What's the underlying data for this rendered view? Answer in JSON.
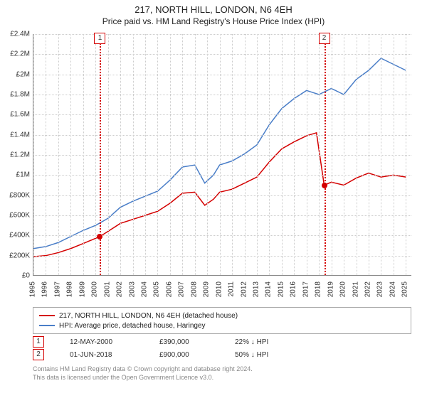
{
  "title": "217, NORTH HILL, LONDON, N6 4EH",
  "subtitle": "Price paid vs. HM Land Registry's House Price Index (HPI)",
  "chart": {
    "type": "line",
    "background_color": "#ffffff",
    "grid_color": "#cccccc",
    "axis_color": "#888888",
    "title_fontsize": 13,
    "label_fontsize": 10,
    "x_years": [
      1995,
      1996,
      1997,
      1998,
      1999,
      2000,
      2001,
      2002,
      2003,
      2004,
      2005,
      2006,
      2007,
      2008,
      2009,
      2010,
      2011,
      2012,
      2013,
      2014,
      2015,
      2016,
      2017,
      2018,
      2019,
      2020,
      2021,
      2022,
      2023,
      2024,
      2025
    ],
    "y_ticks": [
      0,
      200000,
      400000,
      600000,
      800000,
      1000000,
      1200000,
      1400000,
      1600000,
      1800000,
      2000000,
      2200000,
      2400000
    ],
    "y_tick_labels": [
      "£0",
      "£200K",
      "£400K",
      "£600K",
      "£800K",
      "£1M",
      "£1.2M",
      "£1.4M",
      "£1.6M",
      "£1.8M",
      "£2M",
      "£2.2M",
      "£2.4M"
    ],
    "ylim": [
      0,
      2400000
    ],
    "xlim": [
      1995,
      2025.5
    ],
    "series": [
      {
        "name": "price_paid",
        "label": "217, NORTH HILL, LONDON, N6 4EH (detached house)",
        "color": "#d40000",
        "line_width": 1.5,
        "data": [
          [
            1995,
            190000
          ],
          [
            1996,
            200000
          ],
          [
            1997,
            230000
          ],
          [
            1998,
            270000
          ],
          [
            1999,
            320000
          ],
          [
            2000.36,
            390000
          ],
          [
            2001,
            440000
          ],
          [
            2002,
            520000
          ],
          [
            2003,
            560000
          ],
          [
            2004,
            600000
          ],
          [
            2005,
            640000
          ],
          [
            2006,
            720000
          ],
          [
            2007,
            820000
          ],
          [
            2008,
            830000
          ],
          [
            2008.8,
            700000
          ],
          [
            2009.5,
            760000
          ],
          [
            2010,
            830000
          ],
          [
            2011,
            860000
          ],
          [
            2012,
            920000
          ],
          [
            2013,
            980000
          ],
          [
            2014,
            1130000
          ],
          [
            2015,
            1260000
          ],
          [
            2016,
            1330000
          ],
          [
            2017,
            1390000
          ],
          [
            2017.8,
            1420000
          ],
          [
            2018.42,
            900000
          ],
          [
            2019,
            930000
          ],
          [
            2020,
            900000
          ],
          [
            2021,
            970000
          ],
          [
            2022,
            1020000
          ],
          [
            2023,
            980000
          ],
          [
            2024,
            1000000
          ],
          [
            2025,
            980000
          ]
        ]
      },
      {
        "name": "hpi",
        "label": "HPI: Average price, detached house, Haringey",
        "color": "#4a7ec8",
        "line_width": 1.5,
        "data": [
          [
            1995,
            270000
          ],
          [
            1996,
            290000
          ],
          [
            1997,
            330000
          ],
          [
            1998,
            390000
          ],
          [
            1999,
            450000
          ],
          [
            2000,
            500000
          ],
          [
            2001,
            570000
          ],
          [
            2002,
            680000
          ],
          [
            2003,
            740000
          ],
          [
            2004,
            790000
          ],
          [
            2005,
            840000
          ],
          [
            2006,
            950000
          ],
          [
            2007,
            1080000
          ],
          [
            2008,
            1100000
          ],
          [
            2008.8,
            920000
          ],
          [
            2009.5,
            1000000
          ],
          [
            2010,
            1100000
          ],
          [
            2011,
            1140000
          ],
          [
            2012,
            1210000
          ],
          [
            2013,
            1300000
          ],
          [
            2014,
            1500000
          ],
          [
            2015,
            1660000
          ],
          [
            2016,
            1760000
          ],
          [
            2017,
            1840000
          ],
          [
            2018,
            1800000
          ],
          [
            2019,
            1860000
          ],
          [
            2020,
            1800000
          ],
          [
            2021,
            1950000
          ],
          [
            2022,
            2040000
          ],
          [
            2023,
            2160000
          ],
          [
            2024,
            2100000
          ],
          [
            2025,
            2040000
          ]
        ]
      }
    ],
    "markers": [
      {
        "n": "1",
        "year": 2000.36,
        "value": 390000,
        "color": "#d40000"
      },
      {
        "n": "2",
        "year": 2018.42,
        "value": 900000,
        "color": "#d40000"
      }
    ]
  },
  "legend": {
    "series1_label": "217, NORTH HILL, LONDON, N6 4EH (detached house)",
    "series2_label": "HPI: Average price, detached house, Haringey"
  },
  "transactions": [
    {
      "n": "1",
      "date": "12-MAY-2000",
      "price": "£390,000",
      "diff": "22% ↓ HPI",
      "color": "#d40000"
    },
    {
      "n": "2",
      "date": "01-JUN-2018",
      "price": "£900,000",
      "diff": "50% ↓ HPI",
      "color": "#d40000"
    }
  ],
  "attribution_line1": "Contains HM Land Registry data © Crown copyright and database right 2024.",
  "attribution_line2": "This data is licensed under the Open Government Licence v3.0."
}
